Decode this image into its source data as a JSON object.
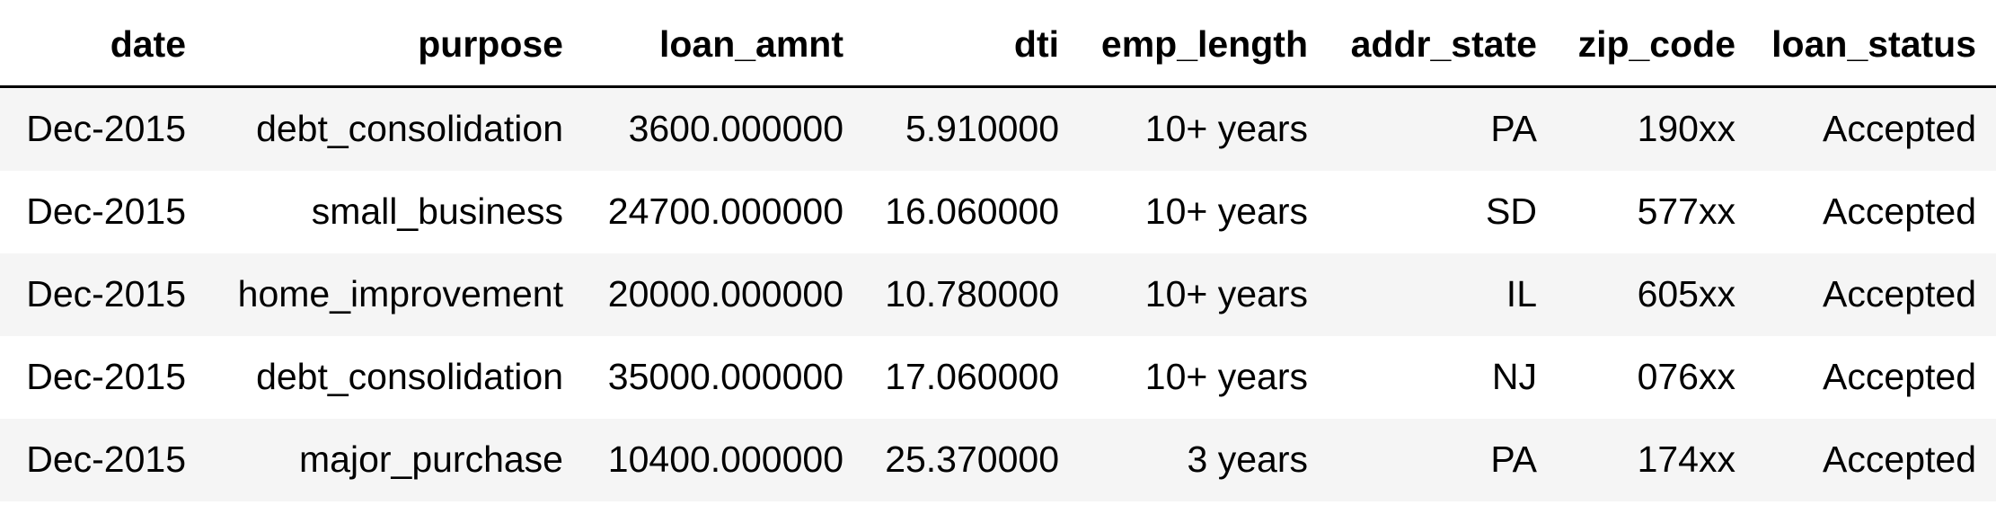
{
  "table": {
    "columns": [
      "date",
      "purpose",
      "loan_amnt",
      "dti",
      "emp_length",
      "addr_state",
      "zip_code",
      "loan_status"
    ],
    "rows": [
      [
        "Dec-2015",
        "debt_consolidation",
        "3600.000000",
        "5.910000",
        "10+ years",
        "PA",
        "190xx",
        "Accepted"
      ],
      [
        "Dec-2015",
        "small_business",
        "24700.000000",
        "16.060000",
        "10+ years",
        "SD",
        "577xx",
        "Accepted"
      ],
      [
        "Dec-2015",
        "home_improvement",
        "20000.000000",
        "10.780000",
        "10+ years",
        "IL",
        "605xx",
        "Accepted"
      ],
      [
        "Dec-2015",
        "debt_consolidation",
        "35000.000000",
        "17.060000",
        "10+ years",
        "NJ",
        "076xx",
        "Accepted"
      ],
      [
        "Dec-2015",
        "major_purchase",
        "10400.000000",
        "25.370000",
        "3 years",
        "PA",
        "174xx",
        "Accepted"
      ]
    ]
  }
}
